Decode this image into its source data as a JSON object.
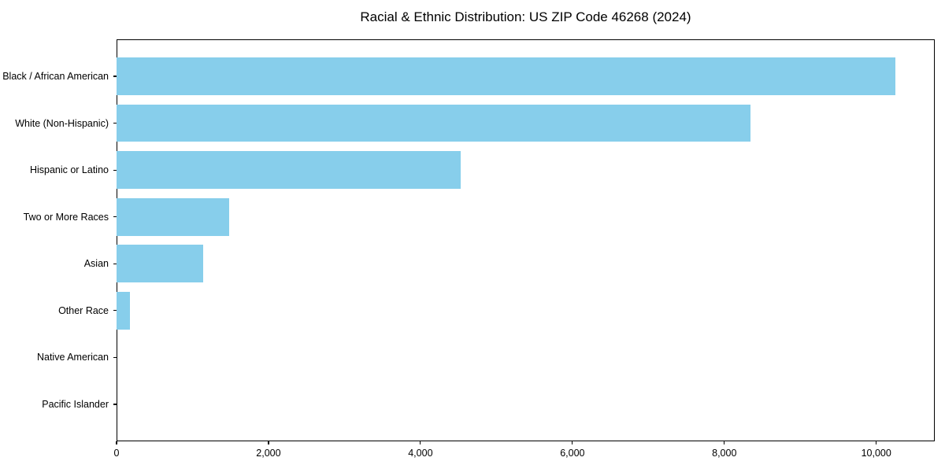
{
  "chart_data": {
    "type": "bar",
    "orientation": "horizontal",
    "title": "Racial & Ethnic Distribution: US ZIP Code 46268 (2024)",
    "categories": [
      "Black / African American",
      "White (Non-Hispanic)",
      "Hispanic or Latino",
      "Two or More Races",
      "Asian",
      "Other Race",
      "Native American",
      "Pacific Islander"
    ],
    "values": [
      10250,
      8340,
      4530,
      1480,
      1140,
      175,
      0,
      0
    ],
    "xlabel": "",
    "ylabel": "",
    "xlim": [
      0,
      10770
    ],
    "x_ticks": [
      0,
      2000,
      4000,
      6000,
      8000,
      10000
    ],
    "x_tick_labels": [
      "0",
      "2,000",
      "4,000",
      "6,000",
      "8,000",
      "10,000"
    ],
    "bar_color": "#87CEEB",
    "bar_relative_height": 0.8,
    "grid": false,
    "legend_position": "none"
  }
}
